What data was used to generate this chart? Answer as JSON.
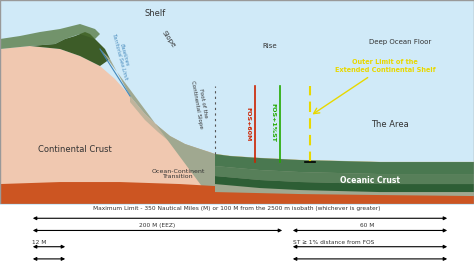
{
  "labels": {
    "shelf": "Shelf",
    "slope": "Slope",
    "rise": "Rise",
    "deep_ocean": "Deep Ocean Floor",
    "continental_crust": "Continental Crust",
    "ocean_transition": "Ocean-Continent\nTransition",
    "oceanic_crust": "Oceanic Crust",
    "baseline": "Baselines\nTerritorial Sea Limit",
    "fos": "Foot of the\nContinental Slope",
    "fos_60m": "FOS+60M",
    "fos_1pct": "FOS+1%ST",
    "outer_limit": "Outer Limit of the\nExtended Continental Shelf",
    "the_area": "The Area",
    "max_limit": "Maximum Limit - 350 Nautical Miles (M) or 100 M from the 2500 m isobath (whichever is greater)",
    "eez_200": "200 M (EEZ)",
    "60m": "60 M",
    "12m": "12 M",
    "st_1pct": "ST ≥ 1% distance from FOS"
  },
  "colors": {
    "land_green_dark": "#3d5c28",
    "land_green_mid": "#4a6e30",
    "continental_crust": "#f0c8b0",
    "ocean_water_light": "#d0eaf8",
    "ocean_water_shelf": "#b8ddf0",
    "slope_grey": "#a0a890",
    "ocean_floor_grey": "#8c9680",
    "oceanic_crust_green": "#4a7850",
    "orange_mantle": "#cc5522",
    "sediment_cream": "#e8dab0",
    "outer_limit_yellow": "#e8d800",
    "fos_red": "#cc2200",
    "fos_green": "#22aa00",
    "baseline_blue": "#4488bb",
    "text_dark": "#333333",
    "text_white": "#ffffff",
    "border": "#999999"
  }
}
